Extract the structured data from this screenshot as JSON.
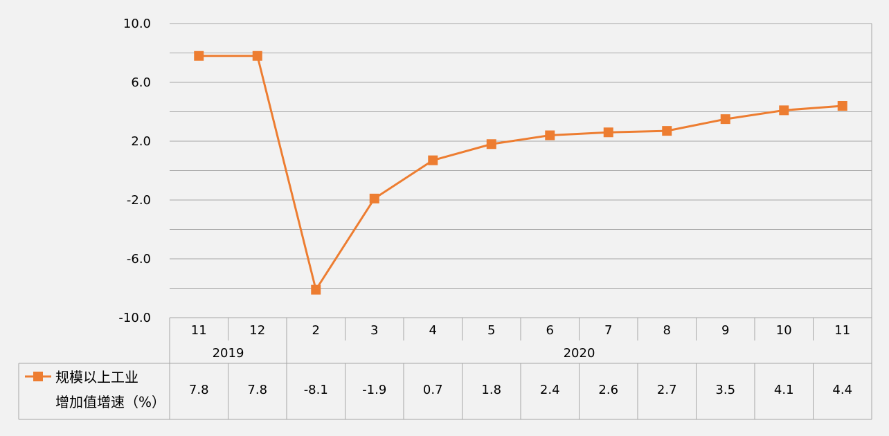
{
  "chart_data": {
    "type": "line",
    "y_ticks": [
      "10.0",
      "6.0",
      "2.0",
      "-2.0",
      "-6.0",
      "-10.0"
    ],
    "ylim": [
      -10,
      10
    ],
    "grid": true,
    "categories": [
      "11",
      "12",
      "2",
      "3",
      "4",
      "5",
      "6",
      "7",
      "8",
      "9",
      "10",
      "11"
    ],
    "year_groups": [
      {
        "label": "2019",
        "count": 2
      },
      {
        "label": "2020",
        "count": 10
      }
    ],
    "series": [
      {
        "name_lines": [
          "规模以上工业",
          "增加值增速（%）"
        ],
        "color": "#ed7d31",
        "marker": "square",
        "values": [
          7.8,
          7.8,
          -8.1,
          -1.9,
          0.7,
          1.8,
          2.4,
          2.6,
          2.7,
          3.5,
          4.1,
          4.4
        ],
        "value_labels": [
          "7.8",
          "7.8",
          "-8.1",
          "-1.9",
          "0.7",
          "1.8",
          "2.4",
          "2.6",
          "2.7",
          "3.5",
          "4.1",
          "4.4"
        ]
      }
    ],
    "legend_position": "data-table"
  }
}
